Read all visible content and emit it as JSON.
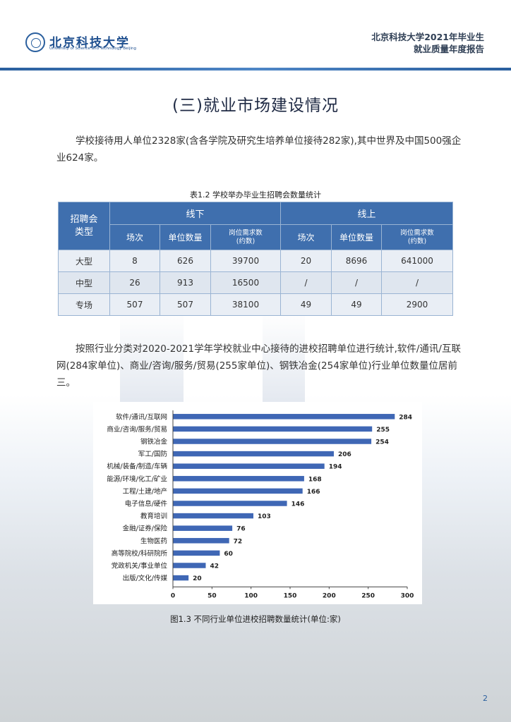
{
  "header": {
    "logo_cn": "北京科技大学",
    "logo_en": "University of Science and Technology Beijing",
    "report_title_line1": "北京科技大学2021年毕业生",
    "report_title_line2": "就业质量年度报告"
  },
  "section_title": "(三)就业市场建设情况",
  "paragraph1": "学校接待用人单位2328家(含各学院及研究生培养单位接待282家),其中世界及中国500强企业624家。",
  "table": {
    "caption": "表1.2  学校举办毕业生招聘会数量统计",
    "type_header": "招聘会\n类型",
    "offline_header": "线下",
    "online_header": "线上",
    "sub_headers": {
      "sessions": "场次",
      "units": "单位数量",
      "demand_line1": "岗位需求数",
      "demand_line2": "(约数)"
    },
    "rows": [
      {
        "type": "大型",
        "off_sessions": "8",
        "off_units": "626",
        "off_demand": "39700",
        "on_sessions": "20",
        "on_units": "8696",
        "on_demand": "641000"
      },
      {
        "type": "中型",
        "off_sessions": "26",
        "off_units": "913",
        "off_demand": "16500",
        "on_sessions": "/",
        "on_units": "/",
        "on_demand": "/"
      },
      {
        "type": "专场",
        "off_sessions": "507",
        "off_units": "507",
        "off_demand": "38100",
        "on_sessions": "49",
        "on_units": "49",
        "on_demand": "2900"
      }
    ]
  },
  "paragraph2": "按照行业分类对2020-2021学年学校就业中心接待的进校招聘单位进行统计,软件/通讯/互联网(284家单位)、商业/咨询/服务/贸易(255家单位)、钢铁冶金(254家单位)行业单位数量位居前三。",
  "chart_data": {
    "type": "bar",
    "orientation": "horizontal",
    "categories": [
      "软件/通讯/互联网",
      "商业/咨询/服务/贸易",
      "钢铁冶金",
      "军工/国防",
      "机械/装备/制造/车辆",
      "能源/环境/化工/矿业",
      "工程/土建/地产",
      "电子信息/硬件",
      "教育培训",
      "金融/证券/保险",
      "生物医药",
      "高等院校/科研院所",
      "党政机关/事业单位",
      "出版/文化/传媒"
    ],
    "values": [
      284,
      255,
      254,
      206,
      194,
      168,
      166,
      146,
      103,
      76,
      72,
      60,
      42,
      20
    ],
    "xlim": [
      0,
      300
    ],
    "xticks": [
      "0",
      "50",
      "100",
      "150",
      "200",
      "250",
      "300"
    ],
    "bar_color": "#3f67b5",
    "grid": false,
    "title": "",
    "xlabel": "",
    "ylabel": ""
  },
  "figure_caption": "图1.3  不同行业单位进校招聘数量统计(单位:家)",
  "page_number": "2"
}
